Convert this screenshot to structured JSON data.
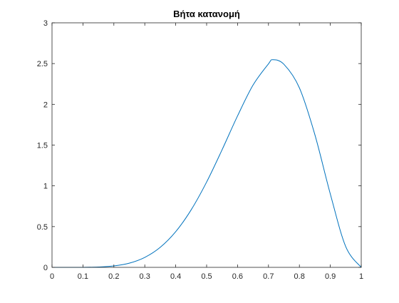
{
  "chart_data": {
    "type": "line",
    "title": "Βήτα κατανομή",
    "xlabel": "",
    "ylabel": "",
    "xlim": [
      0,
      1
    ],
    "ylim": [
      0,
      3
    ],
    "x_ticks": [
      0,
      0.1,
      0.2,
      0.3,
      0.4,
      0.5,
      0.6,
      0.7,
      0.8,
      0.9,
      1
    ],
    "x_tick_labels": [
      "0",
      "0.1",
      "0.2",
      "0.3",
      "0.4",
      "0.5",
      "0.6",
      "0.7",
      "0.8",
      "0.9",
      "1"
    ],
    "y_ticks": [
      0,
      0.5,
      1,
      1.5,
      2,
      2.5,
      3
    ],
    "y_tick_labels": [
      "0",
      "0.5",
      "1",
      "1.5",
      "2",
      "2.5",
      "3"
    ],
    "grid": false,
    "box": true,
    "series": [
      {
        "color": "#0072BD",
        "x": [
          0,
          0.05,
          0.1,
          0.15,
          0.2,
          0.25,
          0.3,
          0.35,
          0.4,
          0.45,
          0.5,
          0.55,
          0.6,
          0.65,
          0.7,
          0.714,
          0.75,
          0.8,
          0.85,
          0.9,
          0.95,
          1
        ],
        "y": [
          0,
          0.0,
          0.0005,
          0.004,
          0.0172,
          0.0516,
          0.1224,
          0.2461,
          0.4378,
          0.7058,
          1.0469,
          1.4429,
          1.858,
          2.2355,
          2.4968,
          2.547,
          2.491,
          2.202,
          1.6285,
          0.9,
          0.253,
          0
        ]
      }
    ]
  }
}
